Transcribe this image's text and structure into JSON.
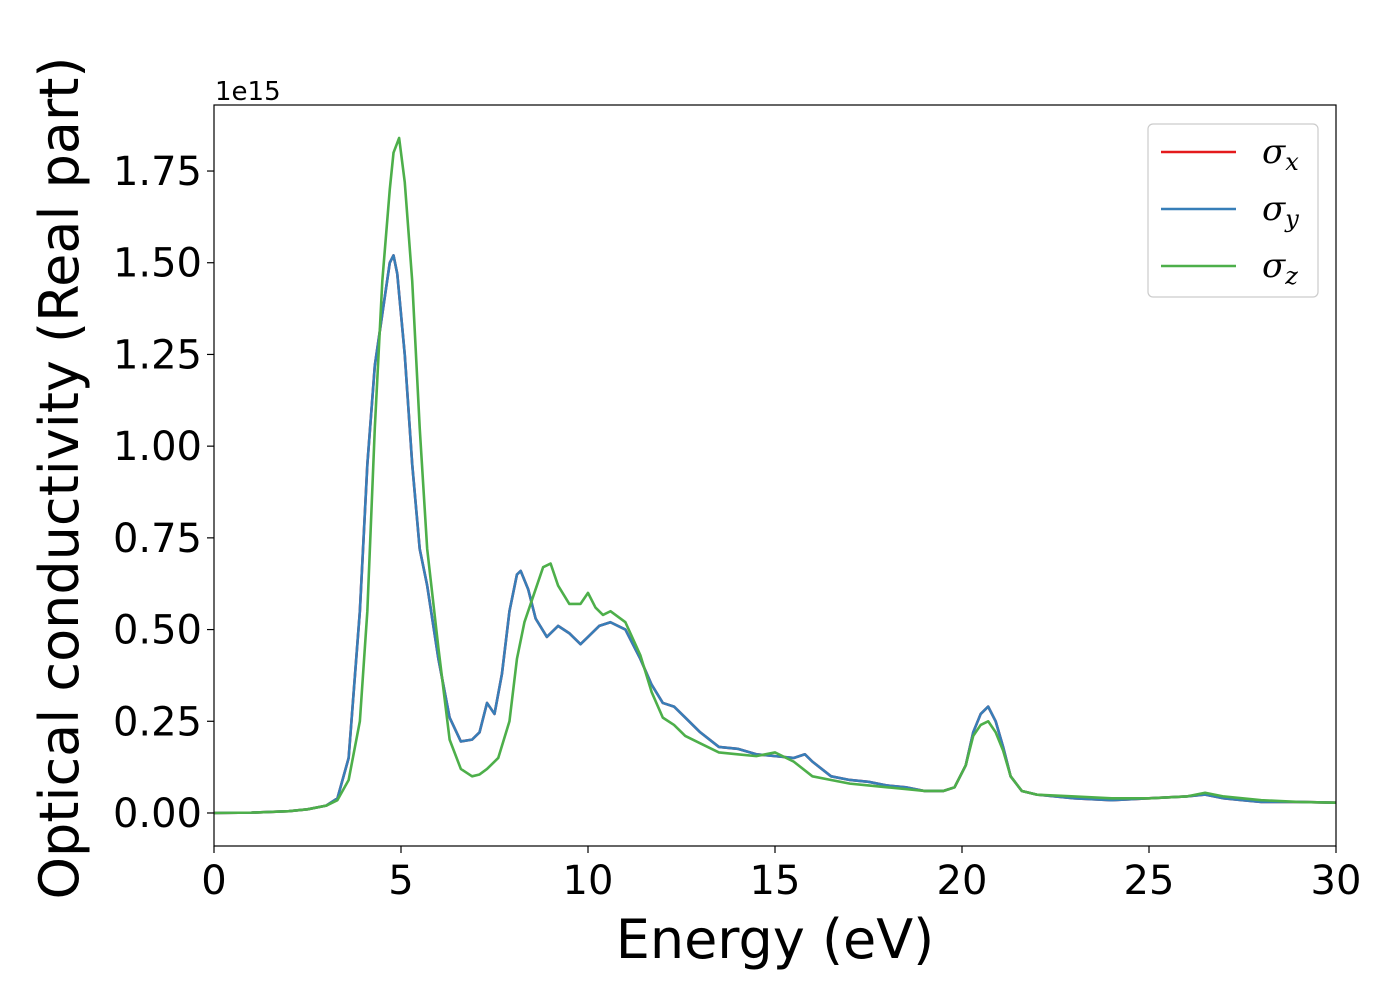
{
  "chart_data": {
    "type": "line",
    "xlabel": "Energy (eV)",
    "ylabel": "Optical conductivity (Real part)",
    "y_offset_label": "1e15",
    "y_scale_factor": 1000000000000000.0,
    "xlim": [
      0,
      30
    ],
    "ylim": [
      -0.09,
      1.93
    ],
    "xticks": [
      0,
      5,
      10,
      15,
      20,
      25,
      30
    ],
    "yticks": [
      0.0,
      0.25,
      0.5,
      0.75,
      1.0,
      1.25,
      1.5,
      1.75
    ],
    "ytick_labels": [
      "0.00",
      "0.25",
      "0.50",
      "0.75",
      "1.00",
      "1.25",
      "1.50",
      "1.75"
    ],
    "grid": false,
    "legend_position": "top-right",
    "series": [
      {
        "name": "σ",
        "subscript": "x",
        "color": "#e41a1c",
        "x": [
          0,
          1,
          2,
          2.5,
          3,
          3.3,
          3.6,
          3.9,
          4.1,
          4.3,
          4.5,
          4.7,
          4.8,
          4.9,
          5.1,
          5.3,
          5.5,
          5.7,
          6.0,
          6.3,
          6.6,
          6.9,
          7.1,
          7.3,
          7.5,
          7.7,
          7.9,
          8.1,
          8.2,
          8.4,
          8.6,
          8.9,
          9.2,
          9.5,
          9.8,
          10.0,
          10.3,
          10.6,
          11.0,
          11.4,
          11.7,
          12.0,
          12.3,
          12.6,
          13.0,
          13.5,
          14.0,
          14.5,
          15.0,
          15.5,
          15.8,
          16.0,
          16.5,
          17.0,
          17.5,
          18.0,
          18.5,
          19.0,
          19.5,
          19.8,
          20.1,
          20.3,
          20.5,
          20.7,
          20.9,
          21.1,
          21.3,
          21.6,
          22.0,
          23.0,
          24.0,
          25.0,
          26.0,
          26.5,
          27.0,
          27.5,
          28.0,
          29.0,
          30.0
        ],
        "y": [
          0.0,
          0.001,
          0.005,
          0.01,
          0.02,
          0.04,
          0.15,
          0.55,
          0.95,
          1.22,
          1.36,
          1.5,
          1.52,
          1.47,
          1.25,
          0.95,
          0.72,
          0.62,
          0.42,
          0.26,
          0.195,
          0.2,
          0.22,
          0.3,
          0.27,
          0.38,
          0.55,
          0.65,
          0.66,
          0.61,
          0.53,
          0.48,
          0.51,
          0.49,
          0.46,
          0.48,
          0.51,
          0.52,
          0.5,
          0.42,
          0.35,
          0.3,
          0.29,
          0.26,
          0.22,
          0.18,
          0.175,
          0.16,
          0.155,
          0.15,
          0.16,
          0.14,
          0.1,
          0.09,
          0.085,
          0.075,
          0.07,
          0.06,
          0.06,
          0.07,
          0.13,
          0.22,
          0.27,
          0.29,
          0.25,
          0.18,
          0.1,
          0.06,
          0.05,
          0.04,
          0.035,
          0.04,
          0.045,
          0.05,
          0.04,
          0.035,
          0.03,
          0.03,
          0.028
        ]
      },
      {
        "name": "σ",
        "subscript": "y",
        "color": "#377eb8",
        "x": [
          0,
          1,
          2,
          2.5,
          3,
          3.3,
          3.6,
          3.9,
          4.1,
          4.3,
          4.5,
          4.7,
          4.8,
          4.9,
          5.1,
          5.3,
          5.5,
          5.7,
          6.0,
          6.3,
          6.6,
          6.9,
          7.1,
          7.3,
          7.5,
          7.7,
          7.9,
          8.1,
          8.2,
          8.4,
          8.6,
          8.9,
          9.2,
          9.5,
          9.8,
          10.0,
          10.3,
          10.6,
          11.0,
          11.4,
          11.7,
          12.0,
          12.3,
          12.6,
          13.0,
          13.5,
          14.0,
          14.5,
          15.0,
          15.5,
          15.8,
          16.0,
          16.5,
          17.0,
          17.5,
          18.0,
          18.5,
          19.0,
          19.5,
          19.8,
          20.1,
          20.3,
          20.5,
          20.7,
          20.9,
          21.1,
          21.3,
          21.6,
          22.0,
          23.0,
          24.0,
          25.0,
          26.0,
          26.5,
          27.0,
          27.5,
          28.0,
          29.0,
          30.0
        ],
        "y": [
          0.0,
          0.001,
          0.005,
          0.01,
          0.02,
          0.04,
          0.15,
          0.55,
          0.95,
          1.22,
          1.36,
          1.5,
          1.52,
          1.47,
          1.25,
          0.95,
          0.72,
          0.62,
          0.42,
          0.26,
          0.195,
          0.2,
          0.22,
          0.3,
          0.27,
          0.38,
          0.55,
          0.65,
          0.66,
          0.61,
          0.53,
          0.48,
          0.51,
          0.49,
          0.46,
          0.48,
          0.51,
          0.52,
          0.5,
          0.42,
          0.35,
          0.3,
          0.29,
          0.26,
          0.22,
          0.18,
          0.175,
          0.16,
          0.155,
          0.15,
          0.16,
          0.14,
          0.1,
          0.09,
          0.085,
          0.075,
          0.07,
          0.06,
          0.06,
          0.07,
          0.13,
          0.22,
          0.27,
          0.29,
          0.25,
          0.18,
          0.1,
          0.06,
          0.05,
          0.04,
          0.035,
          0.04,
          0.045,
          0.05,
          0.04,
          0.035,
          0.03,
          0.03,
          0.028
        ]
      },
      {
        "name": "σ",
        "subscript": "z",
        "color": "#4daf4a",
        "x": [
          0,
          1,
          2,
          2.5,
          3,
          3.3,
          3.6,
          3.9,
          4.1,
          4.3,
          4.5,
          4.7,
          4.8,
          4.95,
          5.1,
          5.3,
          5.5,
          5.7,
          6.0,
          6.3,
          6.6,
          6.9,
          7.1,
          7.3,
          7.6,
          7.9,
          8.1,
          8.3,
          8.5,
          8.8,
          9.0,
          9.2,
          9.5,
          9.8,
          10.0,
          10.2,
          10.4,
          10.6,
          11.0,
          11.4,
          11.7,
          12.0,
          12.3,
          12.6,
          13.0,
          13.5,
          14.0,
          14.5,
          15.0,
          15.5,
          16.0,
          16.5,
          17.0,
          17.5,
          18.0,
          18.5,
          19.0,
          19.5,
          19.8,
          20.1,
          20.3,
          20.5,
          20.7,
          20.9,
          21.1,
          21.3,
          21.6,
          22.0,
          23.0,
          24.0,
          25.0,
          26.0,
          26.5,
          27.0,
          27.5,
          28.0,
          29.0,
          30.0
        ],
        "y": [
          0.0,
          0.001,
          0.005,
          0.01,
          0.02,
          0.035,
          0.09,
          0.25,
          0.55,
          1.05,
          1.45,
          1.7,
          1.8,
          1.84,
          1.72,
          1.45,
          1.05,
          0.72,
          0.45,
          0.2,
          0.12,
          0.1,
          0.105,
          0.12,
          0.15,
          0.25,
          0.42,
          0.52,
          0.58,
          0.67,
          0.68,
          0.62,
          0.57,
          0.57,
          0.6,
          0.56,
          0.54,
          0.55,
          0.52,
          0.43,
          0.33,
          0.26,
          0.24,
          0.21,
          0.19,
          0.165,
          0.16,
          0.155,
          0.165,
          0.14,
          0.1,
          0.09,
          0.08,
          0.075,
          0.07,
          0.065,
          0.06,
          0.06,
          0.07,
          0.13,
          0.21,
          0.24,
          0.25,
          0.22,
          0.17,
          0.1,
          0.06,
          0.05,
          0.045,
          0.04,
          0.04,
          0.045,
          0.055,
          0.045,
          0.04,
          0.035,
          0.03,
          0.028
        ]
      }
    ]
  }
}
